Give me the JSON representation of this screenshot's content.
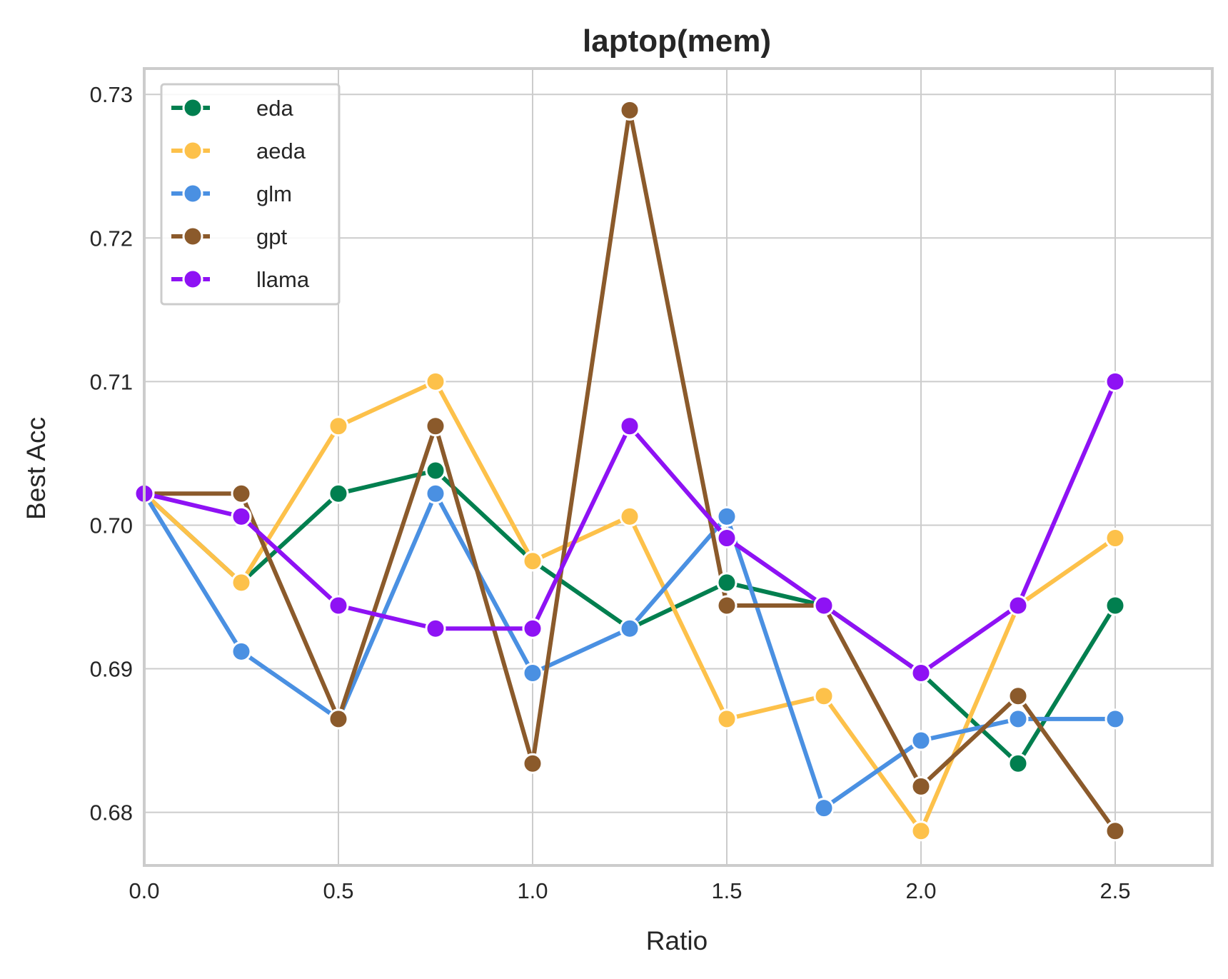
{
  "chart_data": {
    "type": "line",
    "title": "laptop(mem)",
    "xlabel": "Ratio",
    "ylabel": "Best Acc",
    "xlim": [
      0,
      2.75
    ],
    "ylim": [
      0.6763,
      0.7318
    ],
    "x_ticks": [
      0.0,
      0.5,
      1.0,
      1.5,
      2.0,
      2.5
    ],
    "x_tick_labels": [
      "0.0",
      "0.5",
      "1.0",
      "1.5",
      "2.0",
      "2.5"
    ],
    "y_ticks": [
      0.68,
      0.69,
      0.7,
      0.71,
      0.72,
      0.73
    ],
    "y_tick_labels": [
      "0.68",
      "0.69",
      "0.70",
      "0.71",
      "0.72",
      "0.73"
    ],
    "grid": true,
    "legend_position": "upper-left",
    "x": [
      0.0,
      0.25,
      0.5,
      0.75,
      1.0,
      1.25,
      1.5,
      1.75,
      2.0,
      2.25,
      2.5
    ],
    "series": [
      {
        "name": "eda",
        "color": "#017f4f",
        "values": [
          0.7022,
          0.696,
          0.7022,
          0.7038,
          0.6975,
          0.6928,
          0.696,
          0.6944,
          0.6897,
          0.6834,
          0.6944
        ]
      },
      {
        "name": "aeda",
        "color": "#fdc14a",
        "values": [
          0.7022,
          0.696,
          0.7069,
          0.71,
          0.6975,
          0.7006,
          0.6865,
          0.6881,
          0.6787,
          0.6944,
          0.6991
        ]
      },
      {
        "name": "glm",
        "color": "#4a90e2",
        "values": [
          0.7022,
          0.6912,
          0.6865,
          0.7022,
          0.6897,
          0.6928,
          0.7006,
          0.6803,
          0.685,
          0.6865,
          0.6865
        ]
      },
      {
        "name": "gpt",
        "color": "#8b5a2b",
        "values": [
          0.7022,
          0.7022,
          0.6865,
          0.7069,
          0.6834,
          0.7289,
          0.6944,
          0.6944,
          0.6818,
          0.6881,
          0.6787
        ]
      },
      {
        "name": "llama",
        "color": "#8e12f4",
        "values": [
          0.7022,
          0.7006,
          0.6944,
          0.6928,
          0.6928,
          0.7069,
          0.6991,
          0.6944,
          0.6897,
          0.6944,
          0.71
        ]
      }
    ]
  }
}
